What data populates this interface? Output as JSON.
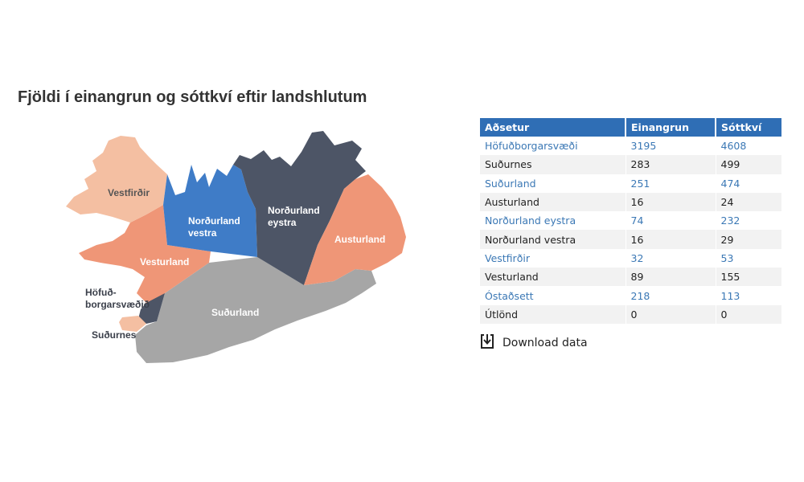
{
  "title": "Fjöldi í einangrun og sóttkví eftir landshlutum",
  "map": {
    "regions": [
      {
        "name": "Vestfirðir",
        "color": "#f4bfa2"
      },
      {
        "name": "Norðurland vestra",
        "color": "#3f7cc7"
      },
      {
        "name": "Norðurland eystra",
        "color": "#4d5566"
      },
      {
        "name": "Austurland",
        "color": "#ef9677"
      },
      {
        "name": "Vesturland",
        "color": "#ef9677"
      },
      {
        "name": "Suðurland",
        "color": "#a6a6a6"
      },
      {
        "name": "Höfuðborgarsvæðið",
        "color": "#4d5566"
      },
      {
        "name": "Suðurnes",
        "color": "#f4bfa2"
      }
    ],
    "labels": {
      "vestfirdir": "Vestfirðir",
      "nv_line1": "Norðurland",
      "nv_line2": "vestra",
      "ne_line1": "Norðurland",
      "ne_line2": "eystra",
      "austurland": "Austurland",
      "vesturland": "Vesturland",
      "sudurland": "Suðurland",
      "hofud_line1": "Höfuð-",
      "hofud_line2": "borgarsvæðið",
      "sudurnes": "Suðurnes"
    }
  },
  "table": {
    "headers": [
      "Aðsetur",
      "Einangrun",
      "Sóttkví"
    ],
    "rows": [
      {
        "region": "Höfuðborgarsvæði",
        "einangrun": "3195",
        "sottkvi": "4608",
        "highlight": true
      },
      {
        "region": "Suðurnes",
        "einangrun": "283",
        "sottkvi": "499",
        "highlight": false
      },
      {
        "region": "Suðurland",
        "einangrun": "251",
        "sottkvi": "474",
        "highlight": true
      },
      {
        "region": "Austurland",
        "einangrun": "16",
        "sottkvi": "24",
        "highlight": false
      },
      {
        "region": "Norðurland eystra",
        "einangrun": "74",
        "sottkvi": "232",
        "highlight": true
      },
      {
        "region": "Norðurland vestra",
        "einangrun": "16",
        "sottkvi": "29",
        "highlight": false
      },
      {
        "region": "Vestfirðir",
        "einangrun": "32",
        "sottkvi": "53",
        "highlight": true
      },
      {
        "region": "Vesturland",
        "einangrun": "89",
        "sottkvi": "155",
        "highlight": false
      },
      {
        "region": "Óstaðsett",
        "einangrun": "218",
        "sottkvi": "113",
        "highlight": true
      },
      {
        "region": "Útlönd",
        "einangrun": "0",
        "sottkvi": "0",
        "highlight": false
      }
    ]
  },
  "download": {
    "label": "Download data",
    "icon": "download-icon"
  }
}
